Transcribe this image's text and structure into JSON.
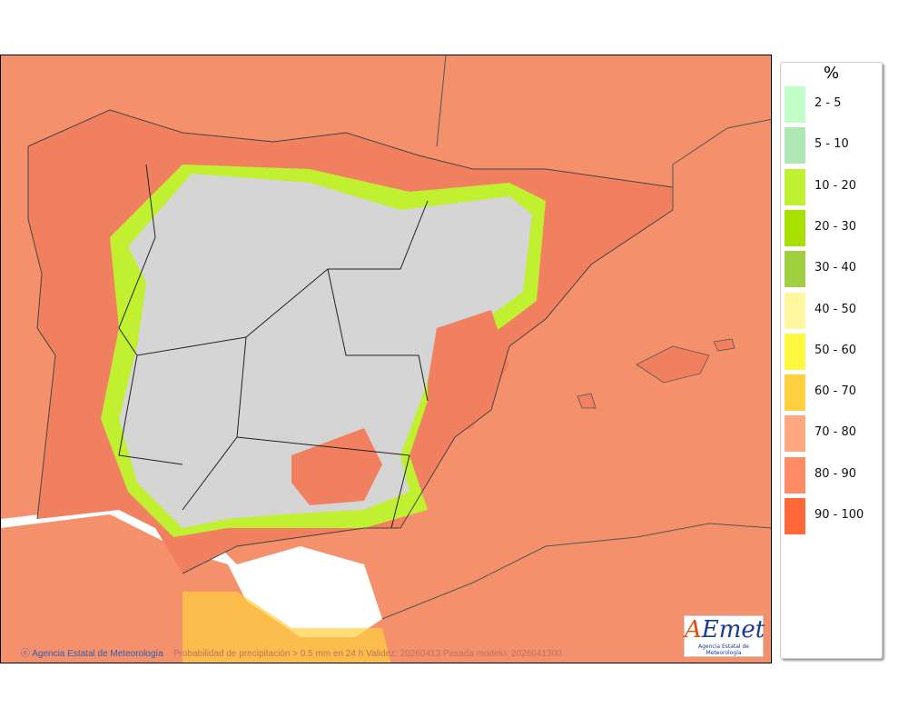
{
  "map": {
    "credit": "Agencia Estatal de Meteorología",
    "caption": "Probabilidad de precipitación > 0.5 mm en 24 h Validez: 20260413 Pasada modelo: 2026041300",
    "logo_text": "AEmet",
    "logo_subtitle": "Agencia Estatal de Meteorología",
    "colors": {
      "sea": "#f4906c",
      "no_rain_land": "#d8d8d8",
      "outside": "#ffffff"
    }
  },
  "legend": {
    "unit": "%",
    "items": [
      {
        "label": "2 - 5",
        "color": "#c0ffc8"
      },
      {
        "label": "5 - 10",
        "color": "#aee6b4"
      },
      {
        "label": "10 - 20",
        "color": "#c0f030"
      },
      {
        "label": "20 - 30",
        "color": "#a8e000"
      },
      {
        "label": "30 - 40",
        "color": "#a0d040"
      },
      {
        "label": "40 - 50",
        "color": "#fff8a0"
      },
      {
        "label": "50 - 60",
        "color": "#fff840"
      },
      {
        "label": "60 - 70",
        "color": "#ffd040"
      },
      {
        "label": "70 - 80",
        "color": "#ffa880"
      },
      {
        "label": "80 - 90",
        "color": "#ff8c64"
      },
      {
        "label": "90 - 100",
        "color": "#ff6838"
      }
    ]
  }
}
